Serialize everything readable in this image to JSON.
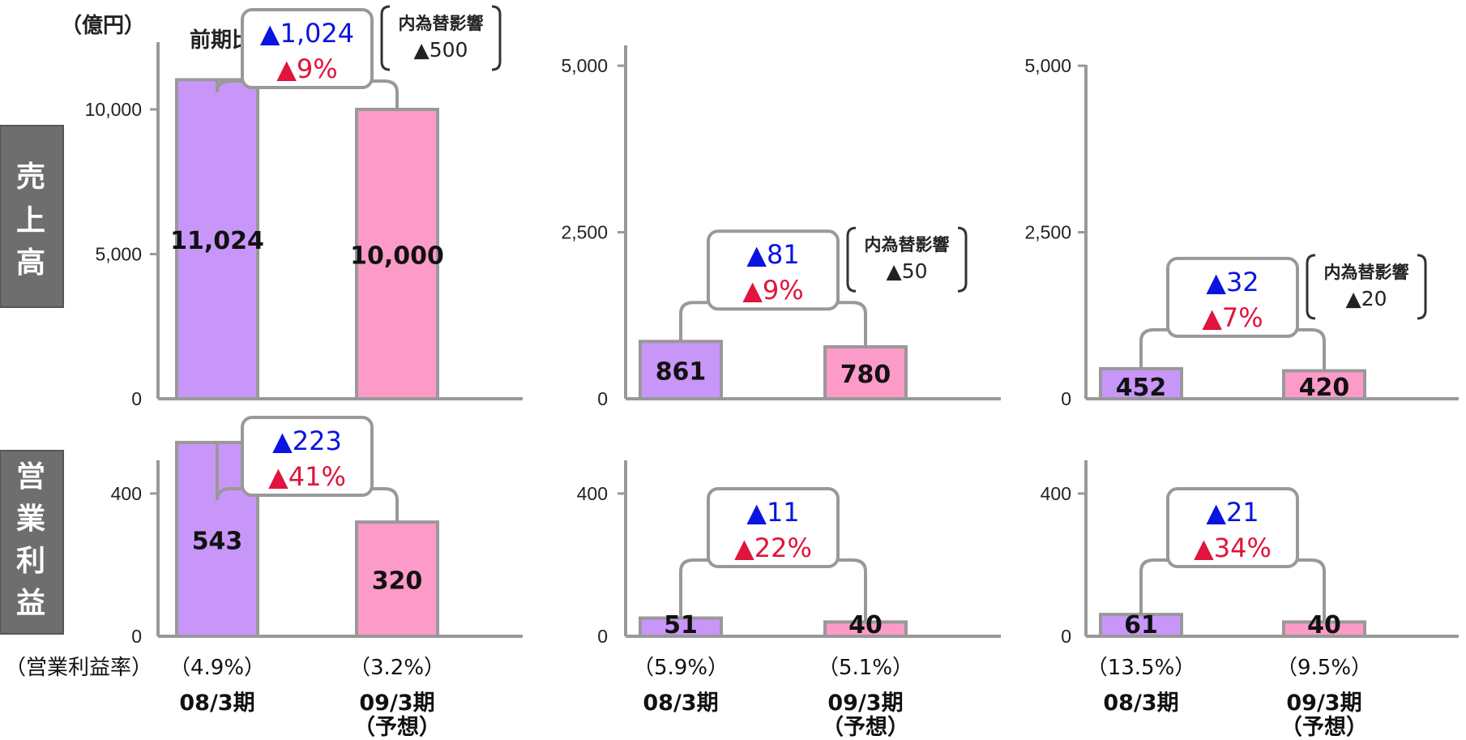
{
  "header": {
    "unit": "（億円）",
    "yoy_label": "前期比",
    "rate_label": "（営業利益率）"
  },
  "row_labels": {
    "sales": [
      "売",
      "上",
      "高"
    ],
    "op_profit": [
      "営",
      "業",
      "利",
      "益"
    ]
  },
  "colors": {
    "bar_prev": "#c896f8",
    "bar_forecast": "#fc9ac8",
    "axis": "#999999",
    "bracket": "#999999",
    "blue": "#0a14e0",
    "red": "#e0143c",
    "side_bg": "#6e6e6e"
  },
  "chart_data": [
    {
      "type": "bar",
      "row": "sales",
      "categories": [
        "08/3期",
        "09/3期"
      ],
      "category_sub": [
        "",
        "（予想）"
      ],
      "values": [
        11024,
        10000
      ],
      "value_labels": [
        "11,024",
        "10,000"
      ],
      "yticks": [
        0,
        5000,
        10000
      ],
      "ytick_labels": [
        "0",
        "5,000",
        "10,000"
      ],
      "ylim": [
        0,
        13500
      ],
      "comparison": {
        "diff": "▲1,024",
        "pct": "▲9%"
      },
      "fx_effect": {
        "label": "内為替影響",
        "value": "▲500"
      }
    },
    {
      "type": "bar",
      "row": "sales",
      "categories": [
        "08/3期",
        "09/3期"
      ],
      "category_sub": [
        "",
        "（予想）"
      ],
      "values": [
        861,
        780
      ],
      "value_labels": [
        "861",
        "780"
      ],
      "yticks": [
        0,
        2500,
        5000
      ],
      "ytick_labels": [
        "0",
        "2,500",
        "5,000"
      ],
      "ylim": [
        0,
        5500
      ],
      "comparison": {
        "diff": "▲81",
        "pct": "▲9%"
      },
      "fx_effect": {
        "label": "内為替影響",
        "value": "▲50"
      }
    },
    {
      "type": "bar",
      "row": "sales",
      "categories": [
        "08/3期",
        "09/3期"
      ],
      "category_sub": [
        "",
        "（予想）"
      ],
      "values": [
        452,
        420
      ],
      "value_labels": [
        "452",
        "420"
      ],
      "yticks": [
        0,
        2500,
        5000
      ],
      "ytick_labels": [
        "0",
        "2,500",
        "5,000"
      ],
      "ylim": [
        0,
        5500
      ],
      "comparison": {
        "diff": "▲32",
        "pct": "▲7%"
      },
      "fx_effect": {
        "label": "内為替影響",
        "value": "▲20"
      }
    },
    {
      "type": "bar",
      "row": "op_profit",
      "categories": [
        "08/3期",
        "09/3期"
      ],
      "values": [
        543,
        320
      ],
      "value_labels": [
        "543",
        "320"
      ],
      "yticks": [
        0,
        400
      ],
      "ytick_labels": [
        "0",
        "400"
      ],
      "ylim": [
        0,
        670
      ],
      "comparison": {
        "diff": "▲223",
        "pct": "▲41%"
      },
      "op_margin": [
        "（4.9%）",
        "（3.2%）"
      ]
    },
    {
      "type": "bar",
      "row": "op_profit",
      "categories": [
        "08/3期",
        "09/3期"
      ],
      "values": [
        51,
        40
      ],
      "value_labels": [
        "51",
        "40"
      ],
      "yticks": [
        0,
        400
      ],
      "ytick_labels": [
        "0",
        "400"
      ],
      "ylim": [
        0,
        670
      ],
      "comparison": {
        "diff": "▲11",
        "pct": "▲22%"
      },
      "op_margin": [
        "（5.9%）",
        "（5.1%）"
      ]
    },
    {
      "type": "bar",
      "row": "op_profit",
      "categories": [
        "08/3期",
        "09/3期"
      ],
      "values": [
        61,
        40
      ],
      "value_labels": [
        "61",
        "40"
      ],
      "yticks": [
        0,
        400
      ],
      "ytick_labels": [
        "0",
        "400"
      ],
      "ylim": [
        0,
        670
      ],
      "comparison": {
        "diff": "▲21",
        "pct": "▲34%"
      },
      "op_margin": [
        "（13.5%）",
        "（9.5%）"
      ]
    }
  ]
}
